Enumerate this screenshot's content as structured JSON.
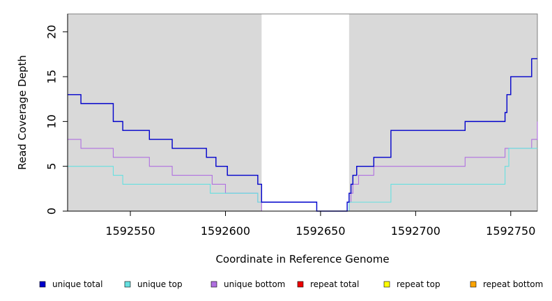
{
  "chart_data": {
    "type": "line",
    "title": "",
    "xlabel": "Coordinate in Reference Genome",
    "ylabel": "Read Coverage Depth",
    "xlim": [
      1592517,
      1592764
    ],
    "ylim": [
      0,
      22
    ],
    "x_ticks": [
      1592550,
      1592600,
      1592650,
      1592700,
      1592750
    ],
    "y_ticks": [
      0,
      5,
      10,
      15,
      20
    ],
    "grid": false,
    "legend_position": "bottom",
    "shaded_regions": [
      {
        "from": 1592517,
        "to": 1592619,
        "color": "#d9d9d9"
      },
      {
        "from": 1592665,
        "to": 1592764,
        "color": "#d9d9d9"
      }
    ],
    "series": [
      {
        "name": "unique total",
        "color": "#0000cc",
        "x": [
          1592517,
          1592524,
          1592541,
          1592546,
          1592560,
          1592572,
          1592590,
          1592593,
          1592595,
          1592601,
          1592617,
          1592619,
          1592648,
          1592664,
          1592665,
          1592666,
          1592667,
          1592669,
          1592678,
          1592687,
          1592726,
          1592747,
          1592748,
          1592750,
          1592761,
          1592764
        ],
        "y": [
          13,
          12,
          10,
          9,
          8,
          7,
          6,
          6,
          5,
          4,
          3,
          1,
          0,
          1,
          2,
          3,
          4,
          5,
          6,
          9,
          10,
          11,
          13,
          15,
          17,
          17
        ]
      },
      {
        "name": "unique top",
        "color": "#66e0e0",
        "x": [
          1592517,
          1592541,
          1592546,
          1592592,
          1592617,
          1592619,
          1592648,
          1592665,
          1592687,
          1592747,
          1592749,
          1592764
        ],
        "y": [
          5,
          4,
          3,
          2,
          1,
          1,
          0,
          1,
          3,
          5,
          7,
          7
        ]
      },
      {
        "name": "unique bottom",
        "color": "#b070e0",
        "x": [
          1592517,
          1592524,
          1592541,
          1592560,
          1592572,
          1592593,
          1592600,
          1592617,
          1592619,
          1592664,
          1592665,
          1592666,
          1592667,
          1592670,
          1592678,
          1592726,
          1592747,
          1592761,
          1592764
        ],
        "y": [
          8,
          7,
          6,
          5,
          4,
          3,
          2,
          1,
          0,
          0,
          1,
          2,
          3,
          4,
          5,
          6,
          7,
          8,
          10
        ]
      },
      {
        "name": "repeat total",
        "color": "#ee0000",
        "x": [
          1592517,
          1592764
        ],
        "y": [
          0,
          0
        ]
      },
      {
        "name": "repeat top",
        "color": "#ffff00",
        "x": [
          1592517,
          1592764
        ],
        "y": [
          0,
          0
        ]
      },
      {
        "name": "repeat bottom",
        "color": "#ffa500",
        "x": [
          1592517,
          1592764
        ],
        "y": [
          0,
          0
        ]
      }
    ]
  }
}
